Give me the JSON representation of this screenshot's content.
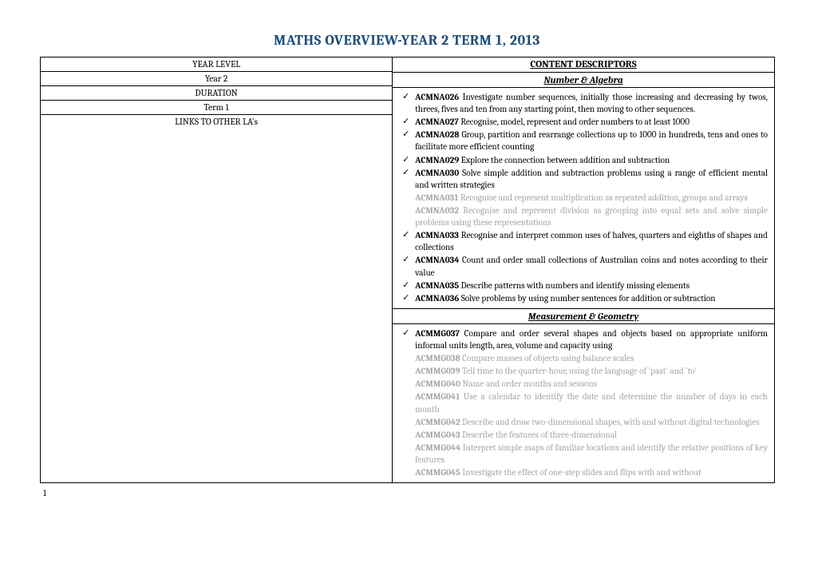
{
  "title": "MATHS OVERVIEW-YEAR 2 TERM 1, 2013",
  "title_color": "#1f4e79",
  "left": {
    "year_level_label": "YEAR LEVEL",
    "year_level_value": "Year 2",
    "duration_label": "DURATION",
    "duration_value": "Term 1",
    "links_label": "LINKS TO OTHER LA's"
  },
  "right": {
    "content_header": "CONTENT DESCRIPTORS",
    "section1": "Number & Algebra",
    "section2": "Measurement & Geometry"
  },
  "number_algebra": [
    {
      "checked": true,
      "greyed": false,
      "code": "ACMNA026",
      "text": " Investigate number sequences, initially those increasing and decreasing by twos, threes, fives and ten from any starting point, then moving to other sequences."
    },
    {
      "checked": true,
      "greyed": false,
      "code": "ACMNA027",
      "text": " Recognise, model, represent and order numbers to at least 1000"
    },
    {
      "checked": true,
      "greyed": false,
      "code": "ACMNA028",
      "text": " Group, partition and rearrange collections up to 1000 in hundreds, tens and ones to facilitate more efficient counting"
    },
    {
      "checked": true,
      "greyed": false,
      "code": "ACMNA029",
      "text": " Explore the connection between addition and subtraction"
    },
    {
      "checked": true,
      "greyed": false,
      "code": "ACMNA030",
      "text": " Solve simple addition and subtraction problems using a range of efficient mental and written strategies"
    },
    {
      "checked": false,
      "greyed": true,
      "code": "ACMNA031",
      "text": " Recognise and represent multiplication as repeated addition, groups and arrays"
    },
    {
      "checked": false,
      "greyed": true,
      "code": "ACMNA032",
      "text": " Recognise and represent division as grouping into equal sets and solve simple problems using these representations"
    },
    {
      "checked": true,
      "greyed": false,
      "code": "ACMNA033",
      "text": " Recognise and interpret common uses of halves, quarters and eighths of shapes and collections"
    },
    {
      "checked": true,
      "greyed": false,
      "code": "ACMNA034",
      "text": " Count and order small collections of Australian coins and notes according to their value"
    },
    {
      "checked": true,
      "greyed": false,
      "code": "ACMNA035",
      "text": " Describe patterns with numbers and identify missing elements"
    },
    {
      "checked": true,
      "greyed": false,
      "code": "ACMNA036",
      "text": " Solve problems by using number sentences for addition or subtraction"
    }
  ],
  "measurement_geometry": [
    {
      "checked": true,
      "greyed": false,
      "code": "ACMMG037",
      "text": " Compare and order several shapes and objects based on appropriate uniform informal units length, area, volume and capacity using"
    },
    {
      "checked": false,
      "greyed": true,
      "code": "ACMMG038",
      "text": " Compare masses of objects using balance scales"
    },
    {
      "checked": false,
      "greyed": true,
      "code": "ACMMG039",
      "text": " Tell time to the quarter-hour, using the language of 'past' and 'to'"
    },
    {
      "checked": false,
      "greyed": true,
      "code": "ACMMG040",
      "text": " Name and order months and seasons"
    },
    {
      "checked": false,
      "greyed": true,
      "code": "ACMMG041",
      "text": " Use a calendar to identify the date and determine the number of days in each month"
    },
    {
      "checked": false,
      "greyed": true,
      "code": "ACMMG042",
      "text": " Describe and draw two-dimensional shapes, with and without digital technologies"
    },
    {
      "checked": false,
      "greyed": true,
      "code": "ACMMG043",
      "text": " Describe the features of three-dimensional"
    },
    {
      "checked": false,
      "greyed": true,
      "code": "ACMMG044",
      "text": " Interpret simple maps of familiar locations and identify the relative positions of key features"
    },
    {
      "checked": false,
      "greyed": true,
      "code": "ACMMG045",
      "text": " Investigate the effect of one-step slides and flips with and without"
    }
  ],
  "page_number": "1"
}
